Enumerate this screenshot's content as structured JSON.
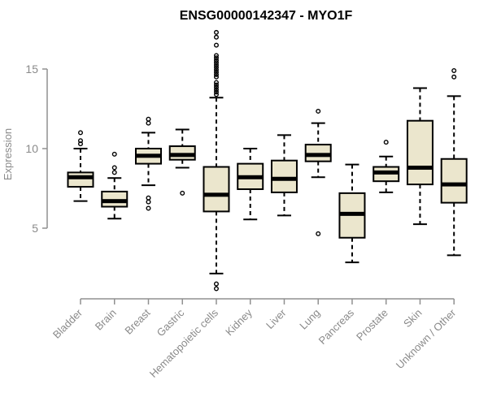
{
  "chart_data": {
    "type": "boxplot",
    "title": "ENSG00000142347 - MYO1F",
    "ylabel": "Expression",
    "xlabel": "",
    "y_axis": {
      "ticks": [
        5,
        10,
        15
      ],
      "range": [
        1.0,
        17.6
      ]
    },
    "grid": false,
    "legend": "none",
    "categories": [
      "Bladder",
      "Brain",
      "Breast",
      "Gastric",
      "Hematopoietic cells",
      "Kidney",
      "Liver",
      "Lung",
      "Pancreas",
      "Prostate",
      "Skin",
      "Unknown / Other"
    ],
    "boxes": [
      {
        "category": "Bladder",
        "whisker_low": 6.7,
        "q1": 7.6,
        "median": 8.2,
        "q3": 8.5,
        "whisker_high": 10.0,
        "outliers": [
          10.3,
          10.5,
          11.0
        ]
      },
      {
        "category": "Brain",
        "whisker_low": 5.6,
        "q1": 6.35,
        "median": 6.7,
        "q3": 7.3,
        "whisker_high": 8.15,
        "outliers": [
          8.5,
          8.8,
          9.65
        ]
      },
      {
        "category": "Breast",
        "whisker_low": 7.7,
        "q1": 9.05,
        "median": 9.55,
        "q3": 10.0,
        "whisker_high": 11.0,
        "outliers": [
          6.25,
          6.65,
          6.9,
          11.6,
          11.85
        ]
      },
      {
        "category": "Gastric",
        "whisker_low": 8.8,
        "q1": 9.3,
        "median": 9.6,
        "q3": 10.15,
        "whisker_high": 11.2,
        "outliers": [
          7.2
        ]
      },
      {
        "category": "Hematopoietic cells",
        "whisker_low": 2.15,
        "q1": 6.05,
        "median": 7.1,
        "q3": 8.85,
        "whisker_high": 13.2,
        "outliers": [
          1.2,
          1.5,
          13.4,
          13.55,
          13.7,
          13.85,
          14.0,
          14.15,
          14.5,
          14.65,
          14.8,
          14.95,
          15.1,
          15.25,
          15.4,
          15.55,
          15.7,
          15.85,
          16.5,
          17.0,
          17.3
        ]
      },
      {
        "category": "Kidney",
        "whisker_low": 5.55,
        "q1": 7.45,
        "median": 8.2,
        "q3": 9.05,
        "whisker_high": 10.0,
        "outliers": []
      },
      {
        "category": "Liver",
        "whisker_low": 5.8,
        "q1": 7.25,
        "median": 8.1,
        "q3": 9.25,
        "whisker_high": 10.85,
        "outliers": []
      },
      {
        "category": "Lung",
        "whisker_low": 8.2,
        "q1": 9.2,
        "median": 9.6,
        "q3": 10.25,
        "whisker_high": 11.6,
        "outliers": [
          4.65,
          12.35
        ]
      },
      {
        "category": "Pancreas",
        "whisker_low": 2.85,
        "q1": 4.4,
        "median": 5.9,
        "q3": 7.2,
        "whisker_high": 9.0,
        "outliers": []
      },
      {
        "category": "Prostate",
        "whisker_low": 7.25,
        "q1": 7.95,
        "median": 8.5,
        "q3": 8.85,
        "whisker_high": 9.5,
        "outliers": [
          10.4
        ]
      },
      {
        "category": "Skin",
        "whisker_low": 5.25,
        "q1": 7.75,
        "median": 8.8,
        "q3": 11.75,
        "whisker_high": 13.8,
        "outliers": []
      },
      {
        "category": "Unknown / Other",
        "whisker_low": 3.3,
        "q1": 6.6,
        "median": 7.75,
        "q3": 9.35,
        "whisker_high": 13.3,
        "outliers": [
          14.5,
          14.9
        ]
      }
    ],
    "colors": {
      "box_fill": "#EBE6CD",
      "box_stroke": "#000000",
      "median": "#000000",
      "whisker": "#000000",
      "outlier_stroke": "#000000",
      "axis": "#909090",
      "tick_label": "#8a8a8a",
      "title": "#000000",
      "background": "#ffffff"
    }
  }
}
